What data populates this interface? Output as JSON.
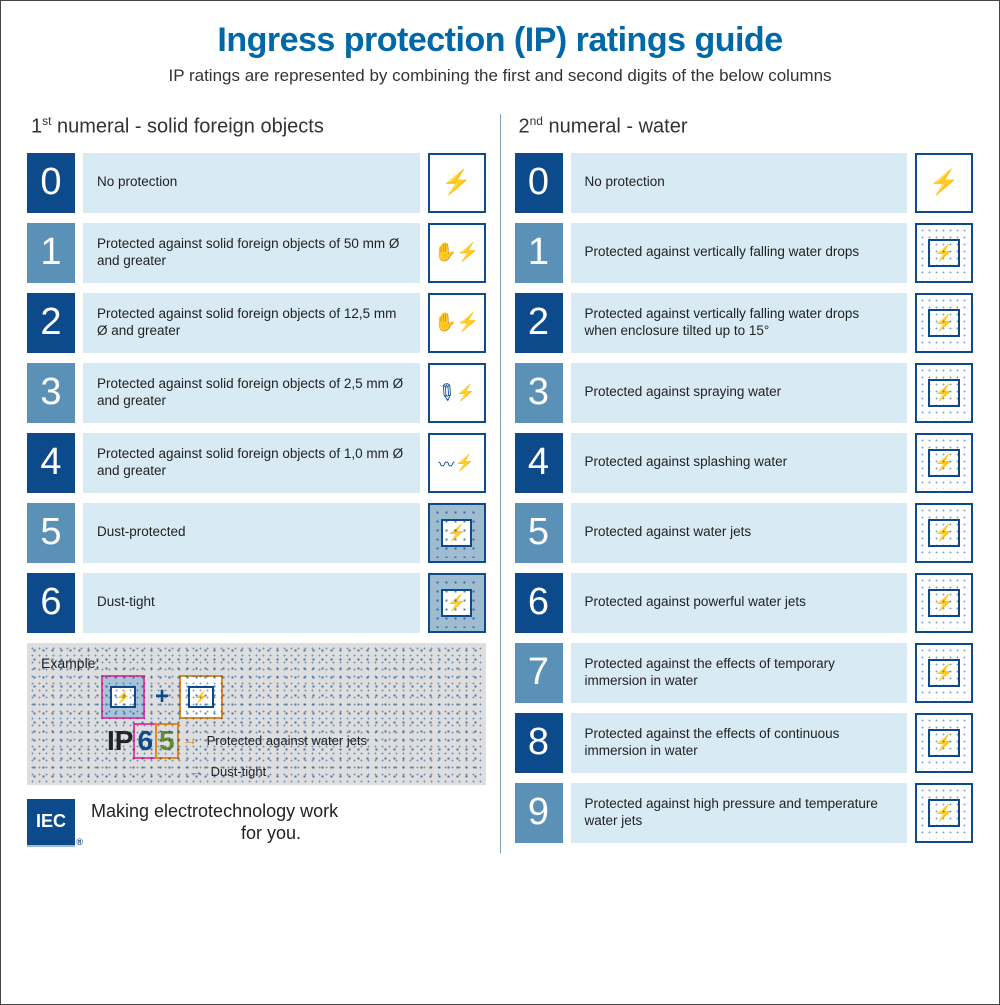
{
  "title": "Ingress protection (IP) ratings guide",
  "subtitle": "IP ratings are represented by combining the first and second digits of the below columns",
  "colors": {
    "title": "#0068a6",
    "digit_dark": "#0c4a8b",
    "digit_med": "#5b91b7",
    "desc_bg": "#d8eaf4",
    "example_bg": "#dedede",
    "pink": "#e83fa0",
    "orange": "#e08a1f"
  },
  "left": {
    "heading_pre": "1",
    "heading_sup": "st",
    "heading_post": " numeral - solid foreign objects",
    "rows": [
      {
        "digit": "0",
        "shade": "dark",
        "desc": "No protection",
        "icon": "bolt"
      },
      {
        "digit": "1",
        "shade": "med",
        "desc": "Protected against solid foreign objects of 50 mm Ø and greater",
        "icon": "hand"
      },
      {
        "digit": "2",
        "shade": "dark",
        "desc": "Protected against solid foreign objects of 12,5 mm Ø and greater",
        "icon": "hand"
      },
      {
        "digit": "3",
        "shade": "med",
        "desc": "Protected against solid foreign objects of 2,5 mm Ø and greater",
        "icon": "tool"
      },
      {
        "digit": "4",
        "shade": "dark",
        "desc": "Protected against solid foreign objects of 1,0 mm Ø and greater",
        "icon": "wire"
      },
      {
        "digit": "5",
        "shade": "med",
        "desc": "Dust-protected",
        "icon": "dust"
      },
      {
        "digit": "6",
        "shade": "dark",
        "desc": "Dust-tight",
        "icon": "dust"
      }
    ]
  },
  "right": {
    "heading_pre": "2",
    "heading_sup": "nd",
    "heading_post": " numeral - water",
    "rows": [
      {
        "digit": "0",
        "shade": "dark",
        "desc": "No protection",
        "icon": "bolt"
      },
      {
        "digit": "1",
        "shade": "med",
        "desc": "Protected against vertically falling water drops",
        "icon": "drops"
      },
      {
        "digit": "2",
        "shade": "dark",
        "desc": "Protected against vertically falling water drops when enclosure tilted up to 15°",
        "icon": "drops"
      },
      {
        "digit": "3",
        "shade": "med",
        "desc": "Protected against spraying water",
        "icon": "spray"
      },
      {
        "digit": "4",
        "shade": "dark",
        "desc": "Protected against splashing water",
        "icon": "splash"
      },
      {
        "digit": "5",
        "shade": "med",
        "desc": "Protected against water jets",
        "icon": "jet"
      },
      {
        "digit": "6",
        "shade": "dark",
        "desc": "Protected against powerful water jets",
        "icon": "jet"
      },
      {
        "digit": "7",
        "shade": "med",
        "desc": "Protected against the effects of temporary immersion in water",
        "icon": "immerse"
      },
      {
        "digit": "8",
        "shade": "dark",
        "desc": "Protected against the effects of continuous immersion in water",
        "icon": "immerse"
      },
      {
        "digit": "9",
        "shade": "med",
        "desc": "Protected against high pressure and temperature water jets",
        "icon": "pressure"
      }
    ]
  },
  "example": {
    "label": "Example:",
    "ip": "IP",
    "d1": "6",
    "d2": "5",
    "line_d2": "Protected against water jets",
    "line_d1": "Dust-tight"
  },
  "footer": {
    "logo": "IEC",
    "tag1": "Making  electrotechnology work",
    "tag2": "for you."
  }
}
